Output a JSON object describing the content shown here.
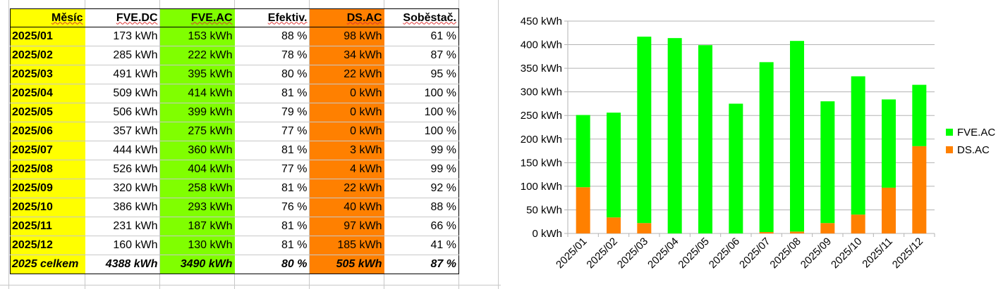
{
  "table": {
    "headers": [
      "Měsíc",
      "FVE.DC",
      "FVE.AC",
      "Efektiv.",
      "DS.AC",
      "Soběstač."
    ],
    "rows": [
      [
        "2025/01",
        "173 kWh",
        "153 kWh",
        "88 %",
        "98 kWh",
        "61 %"
      ],
      [
        "2025/02",
        "285 kWh",
        "222 kWh",
        "78 %",
        "34 kWh",
        "87 %"
      ],
      [
        "2025/03",
        "491 kWh",
        "395 kWh",
        "80 %",
        "22 kWh",
        "95 %"
      ],
      [
        "2025/04",
        "509 kWh",
        "414 kWh",
        "81 %",
        "0 kWh",
        "100 %"
      ],
      [
        "2025/05",
        "506 kWh",
        "399 kWh",
        "79 %",
        "0 kWh",
        "100 %"
      ],
      [
        "2025/06",
        "357 kWh",
        "275 kWh",
        "77 %",
        "0 kWh",
        "100 %"
      ],
      [
        "2025/07",
        "444 kWh",
        "360 kWh",
        "81 %",
        "3 kWh",
        "99 %"
      ],
      [
        "2025/08",
        "526 kWh",
        "404 kWh",
        "77 %",
        "4 kWh",
        "99 %"
      ],
      [
        "2025/09",
        "320 kWh",
        "258 kWh",
        "81 %",
        "22 kWh",
        "92 %"
      ],
      [
        "2025/10",
        "386 kWh",
        "293 kWh",
        "76 %",
        "40 kWh",
        "88 %"
      ],
      [
        "2025/11",
        "231 kWh",
        "187 kWh",
        "81 %",
        "97 kWh",
        "66 %"
      ],
      [
        "2025/12",
        "160 kWh",
        "130 kWh",
        "81 %",
        "185 kWh",
        "41 %"
      ]
    ],
    "total": [
      "2025 celkem",
      "4388 kWh",
      "3490 kWh",
      "80 %",
      "505 kWh",
      "87 %"
    ]
  },
  "chart_data": {
    "type": "bar",
    "stacked": true,
    "categories": [
      "2025/01",
      "2025/02",
      "2025/03",
      "2025/04",
      "2025/05",
      "2025/06",
      "2025/07",
      "2025/08",
      "2025/09",
      "2025/10",
      "2025/11",
      "2025/12"
    ],
    "series": [
      {
        "name": "DS.AC",
        "color": "#ff8000",
        "values": [
          98,
          34,
          22,
          0,
          0,
          0,
          3,
          4,
          22,
          40,
          97,
          185
        ]
      },
      {
        "name": "FVE.AC",
        "color": "#00ff00",
        "values": [
          153,
          222,
          395,
          414,
          399,
          275,
          360,
          404,
          258,
          293,
          187,
          130
        ]
      }
    ],
    "yticks": [
      "0 kWh",
      "50 kWh",
      "100 kWh",
      "150 kWh",
      "200 kWh",
      "250 kWh",
      "300 kWh",
      "350 kWh",
      "400 kWh",
      "450 kWh"
    ],
    "ylim": [
      0,
      450
    ],
    "grid": true,
    "legend": "right"
  }
}
